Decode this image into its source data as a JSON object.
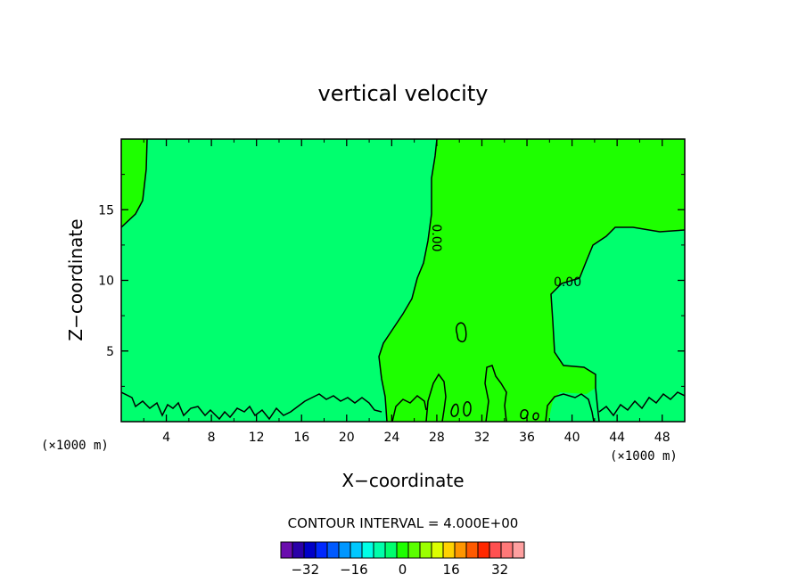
{
  "chart_data": {
    "type": "contour",
    "title": "vertical velocity",
    "xlabel": "X−coordinate",
    "ylabel": "Z−coordinate",
    "x_unit_left": "(×1000 m)",
    "x_unit_right": "(×1000 m)",
    "xlim": [
      0,
      50
    ],
    "ylim": [
      0,
      20
    ],
    "xticks": [
      4,
      8,
      12,
      16,
      20,
      24,
      28,
      32,
      36,
      40,
      44,
      48
    ],
    "yticks": [
      5,
      10,
      15
    ],
    "contour_interval_text": "CONTOUR INTERVAL = 4.000E+00",
    "contour_labels": [
      {
        "text": "0.00",
        "x": 27.6,
        "y": 13.0,
        "rotation": "vertical"
      },
      {
        "text": "0.00",
        "x": 39.6,
        "y": 9.6,
        "rotation": "horizontal"
      }
    ],
    "regions": [
      {
        "name": "weak-negative",
        "color": "#00ff6e"
      },
      {
        "name": "weak-positive",
        "color": "#1eff00"
      }
    ],
    "colorbar": {
      "colors": [
        "#6a0dad",
        "#2a00a8",
        "#0000c8",
        "#0028ff",
        "#005aff",
        "#0096ff",
        "#00c8ff",
        "#00ffe6",
        "#00ffaa",
        "#00ff6e",
        "#1eff00",
        "#5aff00",
        "#9bff00",
        "#dcff00",
        "#ffd200",
        "#ff9600",
        "#ff5a00",
        "#ff2800",
        "#ff5050",
        "#ff7878",
        "#ffa0a0"
      ],
      "tick_values": [
        -32,
        -16,
        0,
        16,
        32
      ],
      "tick_labels": [
        "−32",
        "−16",
        "0",
        "16",
        "32"
      ],
      "range": [
        -40,
        40
      ]
    }
  }
}
